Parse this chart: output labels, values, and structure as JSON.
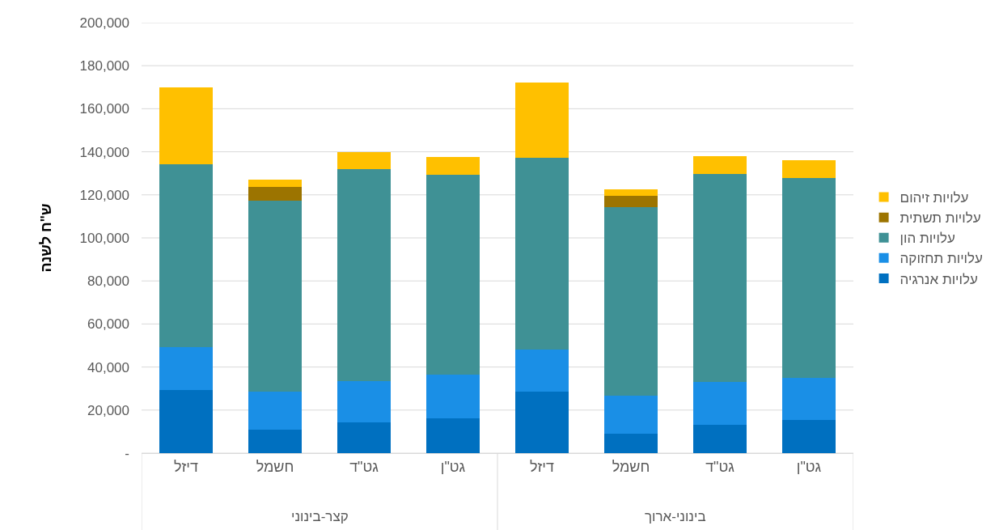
{
  "chart_data": {
    "type": "bar",
    "stacked": true,
    "ylabel": "ש\"ח לשנה",
    "categories": [
      "דיזל",
      "חשמל",
      "גט\"ד",
      "גט\"ן",
      "דיזל",
      "חשמל",
      "גט\"ד",
      "גט\"ן"
    ],
    "annotations": [
      "קצר-בינוני",
      "בינוני-ארוך"
    ],
    "series": [
      {
        "name": "עלויות אנרגיה",
        "color": "#0070c0",
        "values": [
          29500,
          11000,
          14400,
          16300,
          28700,
          9100,
          13200,
          15500
        ]
      },
      {
        "name": "עלויות תחזוקה",
        "color": "#1a8fe6",
        "values": [
          19600,
          17400,
          19200,
          20000,
          19300,
          17700,
          19700,
          19300
        ]
      },
      {
        "name": "עלויות הון",
        "color": "#3f9195",
        "values": [
          85000,
          88800,
          98400,
          93000,
          89200,
          87400,
          96800,
          93000
        ]
      },
      {
        "name": "עלויות תשתית",
        "color": "#9c7400",
        "values": [
          null,
          6400,
          null,
          null,
          null,
          5300,
          null,
          null
        ]
      },
      {
        "name": "עלויות זיהום",
        "color": "#ffc000",
        "values": [
          36000,
          3400,
          7900,
          8300,
          34800,
          3000,
          8300,
          8300
        ]
      }
    ],
    "ylim": [
      0,
      200000
    ],
    "yticks": [
      {
        "value": 0,
        "label": "-"
      },
      {
        "value": 20000,
        "label": "20,000"
      },
      {
        "value": 40000,
        "label": "40,000"
      },
      {
        "value": 60000,
        "label": "60,000"
      },
      {
        "value": 80000,
        "label": "80,000"
      },
      {
        "value": 100000,
        "label": "100,000"
      },
      {
        "value": 120000,
        "label": "120,000"
      },
      {
        "value": 140000,
        "label": "140,000"
      },
      {
        "value": 160000,
        "label": "160,000"
      },
      {
        "value": 180000,
        "label": "180,000"
      },
      {
        "value": 200000,
        "label": "200,000"
      }
    ],
    "grid": "y",
    "legend": "right"
  }
}
